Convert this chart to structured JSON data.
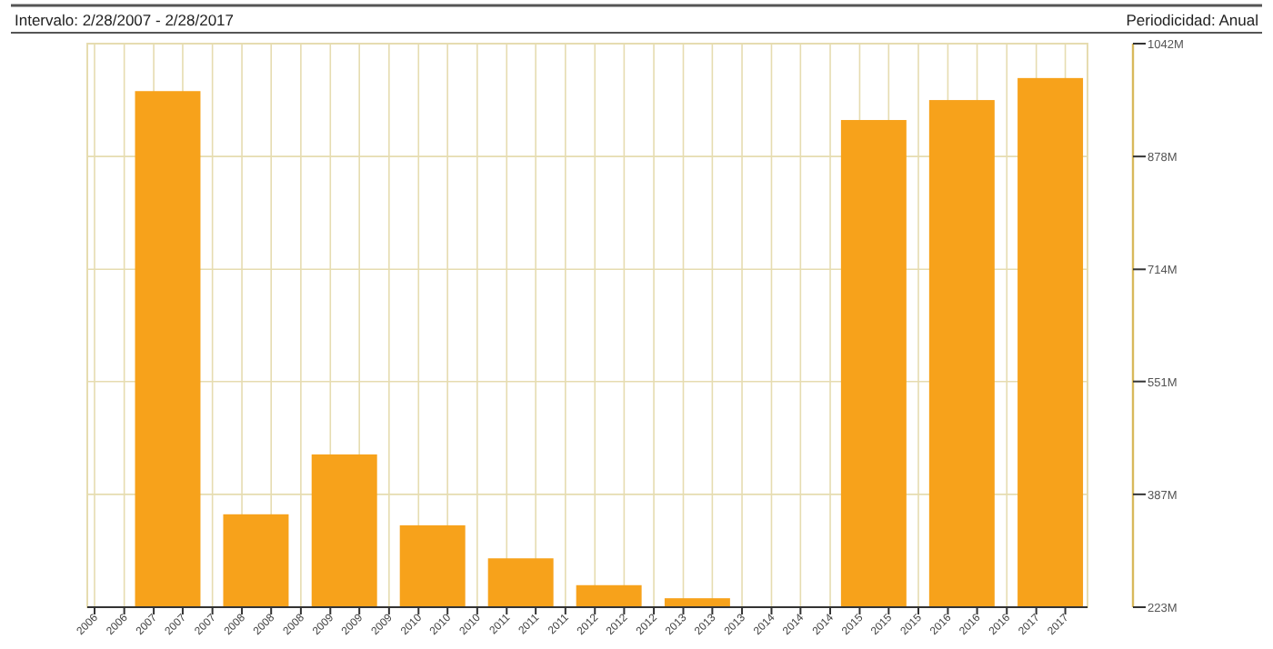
{
  "chart_data": {
    "type": "bar",
    "title": "Intervalo: 2/28/2007 - 2/28/2017",
    "subtitle": "Periodicidad: Anual",
    "x": [
      "2007-02-28",
      "2008-02-28",
      "2009-02-28",
      "2010-02-28",
      "2011-02-28",
      "2012-02-28",
      "2013-02-28",
      "2014-02-28",
      "2015-02-28",
      "2016-02-28",
      "2017-02-28"
    ],
    "values": [
      973,
      358,
      445,
      342,
      294,
      255,
      236,
      null,
      931,
      960,
      992
    ],
    "color": "#f7a21b",
    "xlim": [
      "2006-04-01",
      "2017-08-01"
    ],
    "xticks": [
      {
        "value": "2006-05-01",
        "label": "2006"
      },
      {
        "value": "2006-09-01",
        "label": "2006"
      },
      {
        "value": "2007-01-01",
        "label": "2007"
      },
      {
        "value": "2007-05-01",
        "label": "2007"
      },
      {
        "value": "2007-09-01",
        "label": "2007"
      },
      {
        "value": "2008-01-01",
        "label": "2008"
      },
      {
        "value": "2008-05-01",
        "label": "2008"
      },
      {
        "value": "2008-09-01",
        "label": "2008"
      },
      {
        "value": "2009-01-01",
        "label": "2009"
      },
      {
        "value": "2009-05-01",
        "label": "2009"
      },
      {
        "value": "2009-09-01",
        "label": "2009"
      },
      {
        "value": "2010-01-01",
        "label": "2010"
      },
      {
        "value": "2010-05-01",
        "label": "2010"
      },
      {
        "value": "2010-09-01",
        "label": "2010"
      },
      {
        "value": "2011-01-01",
        "label": "2011"
      },
      {
        "value": "2011-05-01",
        "label": "2011"
      },
      {
        "value": "2011-09-01",
        "label": "2011"
      },
      {
        "value": "2012-01-01",
        "label": "2012"
      },
      {
        "value": "2012-05-01",
        "label": "2012"
      },
      {
        "value": "2012-09-01",
        "label": "2012"
      },
      {
        "value": "2013-01-01",
        "label": "2013"
      },
      {
        "value": "2013-05-01",
        "label": "2013"
      },
      {
        "value": "2013-09-01",
        "label": "2013"
      },
      {
        "value": "2014-01-01",
        "label": "2014"
      },
      {
        "value": "2014-05-01",
        "label": "2014"
      },
      {
        "value": "2014-09-01",
        "label": "2014"
      },
      {
        "value": "2015-01-01",
        "label": "2015"
      },
      {
        "value": "2015-05-01",
        "label": "2015"
      },
      {
        "value": "2015-09-01",
        "label": "2015"
      },
      {
        "value": "2016-01-01",
        "label": "2016"
      },
      {
        "value": "2016-05-01",
        "label": "2016"
      },
      {
        "value": "2016-09-01",
        "label": "2016"
      },
      {
        "value": "2017-01-01",
        "label": "2017"
      },
      {
        "value": "2017-05-01",
        "label": "2017"
      }
    ],
    "ylim": [
      223,
      1042
    ],
    "yticks": [
      {
        "value": 223,
        "label": "223M"
      },
      {
        "value": 387,
        "label": "387M"
      },
      {
        "value": 551,
        "label": "551M"
      },
      {
        "value": 714,
        "label": "714M"
      },
      {
        "value": 878,
        "label": "878M"
      },
      {
        "value": 1042,
        "label": "1042M"
      }
    ],
    "grid": true
  }
}
